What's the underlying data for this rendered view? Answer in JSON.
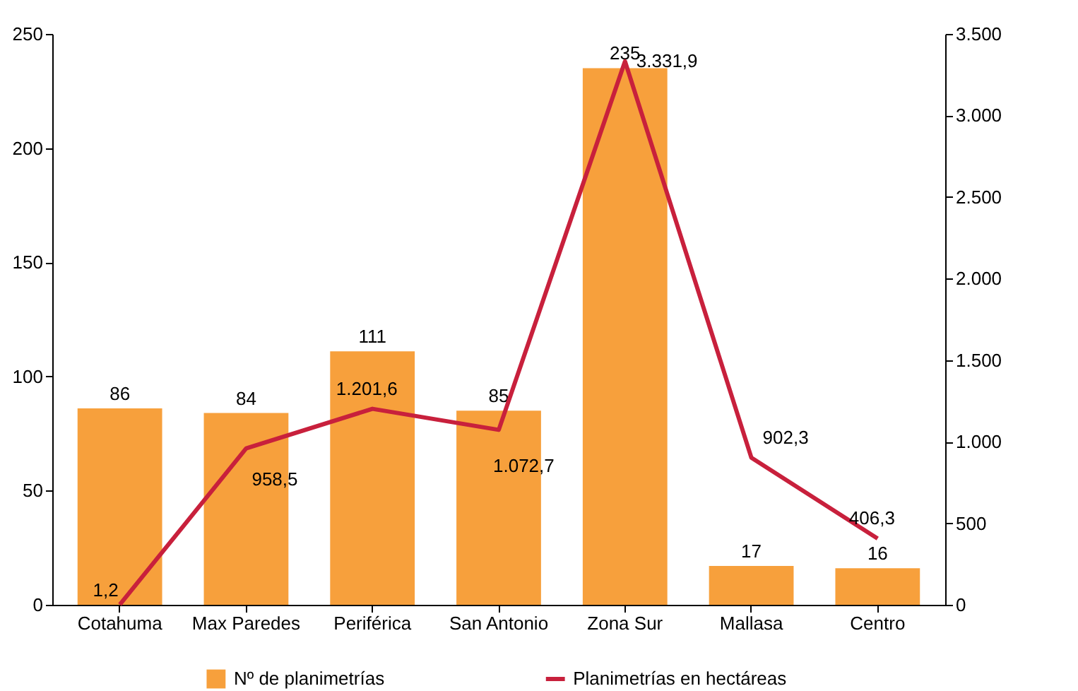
{
  "chart_data": {
    "type": "bar",
    "categories": [
      "Cotahuma",
      "Max Paredes",
      "Periférica",
      "San Antonio",
      "Zona Sur",
      "Mallasa",
      "Centro"
    ],
    "series": [
      {
        "name": "Nº de planimetrías",
        "color": "#f7a03c",
        "values": [
          86,
          84,
          111,
          85,
          235,
          17,
          16
        ],
        "value_labels": [
          "86",
          "84",
          "111",
          "85",
          "235",
          "17",
          "16"
        ]
      },
      {
        "name": "Planimetrías en hectáreas",
        "type": "line",
        "axis": "y2",
        "color": "#c8203c",
        "values": [
          1.2,
          958.5,
          1201.6,
          1072.7,
          3331.9,
          902.3,
          406.3
        ],
        "value_labels": [
          "1,2",
          "958,5",
          "1.201,6",
          "1.072,7",
          "3.331,9",
          "902,3",
          "406,3"
        ]
      }
    ],
    "ylim": [
      0,
      250
    ],
    "yticks": [
      0,
      50,
      100,
      150,
      200,
      250
    ],
    "y2lim": [
      0,
      3500
    ],
    "y2ticks": [
      0,
      {
        "value": 500,
        "label": "500"
      },
      {
        "value": 1000,
        "label": "1.000"
      },
      {
        "value": 1500,
        "label": "1.500"
      },
      {
        "value": 2000,
        "label": "2.000"
      },
      {
        "value": 2500,
        "label": "2.500"
      },
      {
        "value": 3000,
        "label": "3.000"
      },
      {
        "value": 3500,
        "label": "3.500"
      }
    ],
    "grid": false,
    "legend": "bottom",
    "marker": "none",
    "line_style": "solid"
  }
}
